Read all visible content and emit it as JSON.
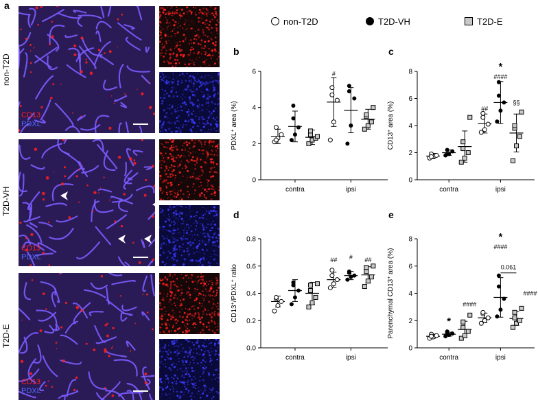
{
  "panel_a": {
    "letter": "a",
    "rows": [
      {
        "label": "non-T2D",
        "stain1": "CD13",
        "stain2": "PDXL",
        "tint": "#2a1a55"
      },
      {
        "label": "T2D-VH",
        "stain1": "CD13",
        "stain2": "PDXL",
        "tint": "#2a1a55"
      },
      {
        "label": "T2D-E",
        "stain1": "CD13",
        "stain2": "PDXL",
        "tint": "#2a1a55"
      }
    ],
    "colors": {
      "cd13": "#ff2020",
      "pdxl": "#3a3aff",
      "vessel": "#7a5cff"
    }
  },
  "legend": {
    "items": [
      {
        "label": "non-T2D",
        "symbol": "open-circle"
      },
      {
        "label": "T2D-VH",
        "symbol": "filled-circle"
      },
      {
        "label": "T2D-E",
        "symbol": "grey-square"
      }
    ]
  },
  "chart_data": [
    {
      "id": "b",
      "letter": "b",
      "type": "scatter",
      "ylabel_main": "PDXL",
      "ylabel_sup": "+",
      "ylabel_rest": " area (%)",
      "ylim": [
        0,
        6
      ],
      "yticks": [
        "0",
        "2",
        "4",
        "6"
      ],
      "ytick_values": [
        0,
        2,
        4,
        6
      ],
      "categories": [
        "contra",
        "ipsi"
      ],
      "groups": [
        {
          "category": "contra",
          "series": "non-T2D",
          "mean": 2.4,
          "sd": 0.4,
          "points": [
            2.1,
            2.3,
            2.5,
            2.9,
            2.2
          ]
        },
        {
          "category": "contra",
          "series": "T2D-VH",
          "mean": 2.95,
          "sd": 0.85,
          "points": [
            2.2,
            2.5,
            2.9,
            3.4,
            4.1
          ]
        },
        {
          "category": "contra",
          "series": "T2D-E",
          "mean": 2.35,
          "sd": 0.4,
          "points": [
            2.0,
            2.2,
            2.3,
            2.5,
            2.7,
            2.4
          ]
        },
        {
          "category": "ipsi",
          "series": "non-T2D",
          "mean": 4.3,
          "sd": 1.35,
          "points": [
            2.2,
            3.2,
            4.4,
            4.7,
            5.1
          ]
        },
        {
          "category": "ipsi",
          "series": "T2D-VH",
          "mean": 3.85,
          "sd": 1.25,
          "points": [
            2.0,
            3.0,
            4.5,
            4.9,
            5.2
          ]
        },
        {
          "category": "ipsi",
          "series": "T2D-E",
          "mean": 3.35,
          "sd": 0.55,
          "points": [
            2.8,
            3.0,
            3.2,
            3.5,
            3.6,
            4.0
          ]
        }
      ],
      "annotations": [
        {
          "text": "#",
          "category": "ipsi",
          "series": "non-T2D",
          "y": 5.75
        }
      ],
      "bracket": null
    },
    {
      "id": "c",
      "letter": "c",
      "type": "scatter",
      "ylabel_main": "CD13",
      "ylabel_sup": "+",
      "ylabel_rest": " area (%)",
      "ylim": [
        0,
        8
      ],
      "yticks": [
        "0",
        "2",
        "4",
        "6",
        "8"
      ],
      "ytick_values": [
        0,
        2,
        4,
        6,
        8
      ],
      "categories": [
        "contra",
        "ipsi"
      ],
      "groups": [
        {
          "category": "contra",
          "series": "non-T2D",
          "mean": 1.75,
          "sd": 0.2,
          "points": [
            1.6,
            1.7,
            1.8,
            1.9,
            1.7
          ]
        },
        {
          "category": "contra",
          "series": "T2D-VH",
          "mean": 2.0,
          "sd": 0.2,
          "points": [
            1.8,
            1.9,
            2.1,
            2.2,
            1.9
          ]
        },
        {
          "category": "contra",
          "series": "T2D-E",
          "mean": 2.45,
          "sd": 1.15,
          "points": [
            1.3,
            1.6,
            2.0,
            2.3,
            2.8,
            4.6
          ]
        },
        {
          "category": "ipsi",
          "series": "non-T2D",
          "mean": 4.15,
          "sd": 0.7,
          "points": [
            3.5,
            3.7,
            4.1,
            4.6,
            4.9
          ]
        },
        {
          "category": "ipsi",
          "series": "T2D-VH",
          "mean": 5.7,
          "sd": 1.55,
          "points": [
            4.3,
            5.1,
            5.7,
            6.2,
            7.2
          ]
        },
        {
          "category": "ipsi",
          "series": "T2D-E",
          "mean": 3.45,
          "sd": 1.4,
          "points": [
            1.4,
            2.5,
            3.2,
            3.8,
            4.0,
            5.0
          ]
        }
      ],
      "annotations": [
        {
          "text": "##",
          "category": "ipsi",
          "series": "non-T2D",
          "y": 5.1
        },
        {
          "text": "*",
          "category": "ipsi",
          "series": "T2D-VH",
          "y": 8.1,
          "large": true
        },
        {
          "text": "####",
          "category": "ipsi",
          "series": "T2D-VH",
          "y": 7.45
        },
        {
          "text": "§§",
          "category": "ipsi",
          "series": "T2D-E",
          "y": 5.55
        }
      ],
      "bracket": null
    },
    {
      "id": "d",
      "letter": "d",
      "type": "scatter",
      "ylabel_main": "CD13",
      "ylabel_sup": "+",
      "ylabel_rest": "/PDXL",
      "ylabel_sup2": "+",
      "ylabel_rest2": " ratio",
      "ylim": [
        0,
        0.8
      ],
      "yticks": [
        "0.0",
        "0.2",
        "0.4",
        "0.6",
        "0.8"
      ],
      "ytick_values": [
        0,
        0.2,
        0.4,
        0.6,
        0.8
      ],
      "categories": [
        "contra",
        "ipsi"
      ],
      "groups": [
        {
          "category": "contra",
          "series": "non-T2D",
          "mean": 0.34,
          "sd": 0.04,
          "points": [
            0.27,
            0.31,
            0.34,
            0.36,
            0.37
          ]
        },
        {
          "category": "contra",
          "series": "T2D-VH",
          "mean": 0.42,
          "sd": 0.08,
          "points": [
            0.32,
            0.37,
            0.42,
            0.46,
            0.48
          ]
        },
        {
          "category": "contra",
          "series": "T2D-E",
          "mean": 0.4,
          "sd": 0.08,
          "points": [
            0.3,
            0.33,
            0.37,
            0.42,
            0.46,
            0.47
          ]
        },
        {
          "category": "ipsi",
          "series": "non-T2D",
          "mean": 0.5,
          "sd": 0.055,
          "points": [
            0.44,
            0.47,
            0.5,
            0.53,
            0.57
          ]
        },
        {
          "category": "ipsi",
          "series": "T2D-VH",
          "mean": 0.53,
          "sd": 0.03,
          "points": [
            0.5,
            0.52,
            0.53,
            0.55,
            0.56
          ]
        },
        {
          "category": "ipsi",
          "series": "T2D-E",
          "mean": 0.535,
          "sd": 0.06,
          "points": [
            0.45,
            0.49,
            0.52,
            0.56,
            0.59,
            0.6
          ]
        }
      ],
      "annotations": [
        {
          "text": "##",
          "category": "ipsi",
          "series": "non-T2D",
          "y": 0.63
        },
        {
          "text": "#",
          "category": "ipsi",
          "series": "T2D-VH",
          "y": 0.65
        },
        {
          "text": "##",
          "category": "ipsi",
          "series": "T2D-E",
          "y": 0.63
        }
      ],
      "bracket": null
    },
    {
      "id": "e",
      "letter": "e",
      "type": "scatter",
      "ylabel_main": "Parenchymal CD13",
      "ylabel_sup": "+",
      "ylabel_rest": " area (%)",
      "ylim": [
        0,
        8
      ],
      "yticks": [
        "0",
        "2",
        "4",
        "6",
        "8"
      ],
      "ytick_values": [
        0,
        2,
        4,
        6,
        8
      ],
      "categories": [
        "contra",
        "ipsi"
      ],
      "groups": [
        {
          "category": "contra",
          "series": "non-T2D",
          "mean": 0.85,
          "sd": 0.15,
          "points": [
            0.7,
            0.8,
            0.9,
            1.0,
            0.85
          ]
        },
        {
          "category": "contra",
          "series": "T2D-VH",
          "mean": 1.0,
          "sd": 0.15,
          "points": [
            0.85,
            0.95,
            1.05,
            1.1,
            1.2
          ]
        },
        {
          "category": "contra",
          "series": "T2D-E",
          "mean": 1.35,
          "sd": 0.6,
          "points": [
            0.7,
            0.9,
            1.2,
            1.5,
            1.9,
            2.4
          ]
        },
        {
          "category": "ipsi",
          "series": "non-T2D",
          "mean": 2.2,
          "sd": 0.35,
          "points": [
            1.8,
            2.0,
            2.2,
            2.5,
            2.6
          ]
        },
        {
          "category": "ipsi",
          "series": "T2D-VH",
          "mean": 3.7,
          "sd": 1.45,
          "points": [
            2.3,
            2.8,
            3.6,
            4.5,
            5.3
          ]
        },
        {
          "category": "ipsi",
          "series": "T2D-E",
          "mean": 2.15,
          "sd": 0.5,
          "points": [
            1.5,
            1.8,
            2.0,
            2.2,
            2.6,
            2.9
          ]
        }
      ],
      "annotations": [
        {
          "text": "*",
          "category": "contra",
          "series": "T2D-VH",
          "y": 1.7,
          "large": true
        },
        {
          "text": "####",
          "category": "ipsi",
          "series": "non-T2D",
          "y": 3.05,
          "dx": -22
        },
        {
          "text": "*",
          "category": "ipsi",
          "series": "T2D-VH",
          "y": 7.9,
          "large": true
        },
        {
          "text": "####",
          "category": "ipsi",
          "series": "T2D-VH",
          "y": 7.25
        },
        {
          "text": "####",
          "category": "ipsi",
          "series": "T2D-E",
          "y": 3.85,
          "dx": 20
        }
      ],
      "bracket": {
        "from": "T2D-VH",
        "to": "T2D-E",
        "category": "ipsi",
        "y": 5.5,
        "label": "0.061"
      }
    }
  ]
}
